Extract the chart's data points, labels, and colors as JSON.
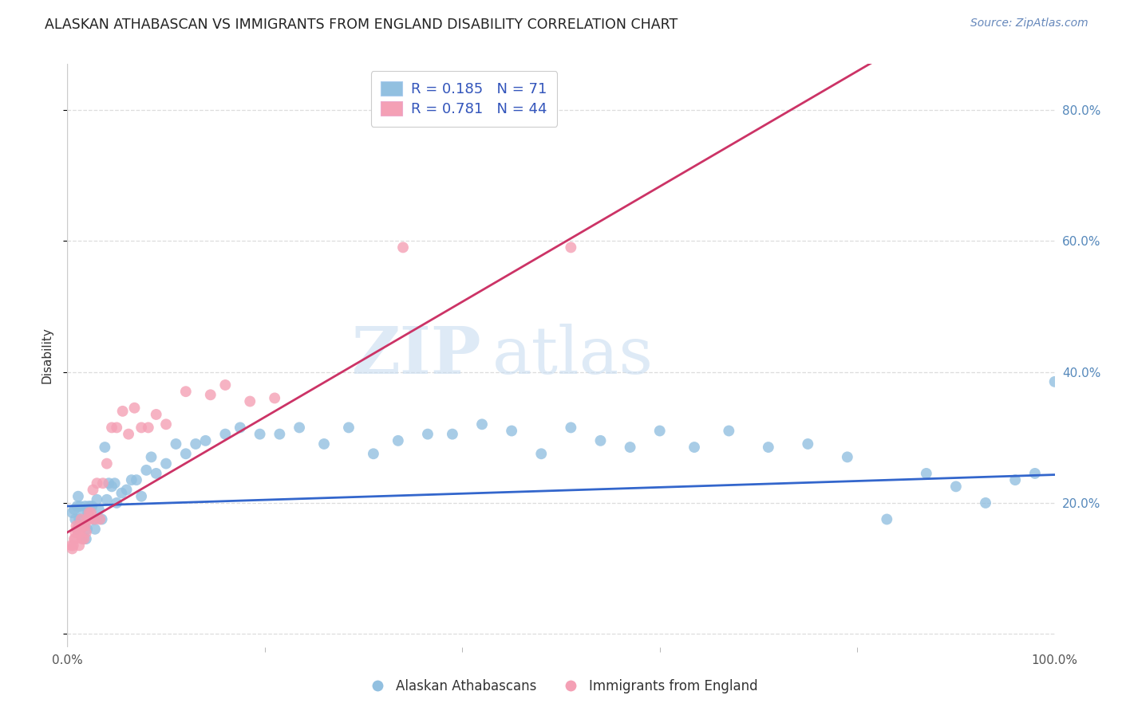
{
  "title": "ALASKAN ATHABASCAN VS IMMIGRANTS FROM ENGLAND DISABILITY CORRELATION CHART",
  "source": "Source: ZipAtlas.com",
  "ylabel": "Disability",
  "xlim": [
    0.0,
    1.0
  ],
  "ylim": [
    -0.02,
    0.87
  ],
  "ytick_vals": [
    0.0,
    0.2,
    0.4,
    0.6,
    0.8
  ],
  "ytick_labels": [
    "",
    "20.0%",
    "40.0%",
    "60.0%",
    "80.0%"
  ],
  "xtick_vals": [
    0.0,
    1.0
  ],
  "xtick_labels": [
    "0.0%",
    "100.0%"
  ],
  "blue_color": "#92C0E0",
  "pink_color": "#F4A0B5",
  "blue_line_color": "#3366CC",
  "pink_line_color": "#CC3366",
  "legend_text_color": "#3355BB",
  "watermark_zip": "ZIP",
  "watermark_atlas": "atlas",
  "R_blue": 0.185,
  "N_blue": 71,
  "R_pink": 0.781,
  "N_pink": 44,
  "blue_intercept": 0.195,
  "blue_slope": 0.048,
  "pink_intercept": 0.155,
  "pink_slope": 0.88,
  "blue_x": [
    0.005,
    0.007,
    0.008,
    0.01,
    0.01,
    0.011,
    0.012,
    0.013,
    0.015,
    0.016,
    0.017,
    0.018,
    0.019,
    0.02,
    0.021,
    0.022,
    0.025,
    0.027,
    0.028,
    0.03,
    0.032,
    0.035,
    0.038,
    0.04,
    0.042,
    0.045,
    0.048,
    0.05,
    0.055,
    0.06,
    0.065,
    0.07,
    0.075,
    0.08,
    0.085,
    0.09,
    0.1,
    0.11,
    0.12,
    0.13,
    0.14,
    0.16,
    0.175,
    0.195,
    0.215,
    0.235,
    0.26,
    0.285,
    0.31,
    0.335,
    0.365,
    0.39,
    0.42,
    0.45,
    0.48,
    0.51,
    0.54,
    0.57,
    0.6,
    0.635,
    0.67,
    0.71,
    0.75,
    0.79,
    0.83,
    0.87,
    0.9,
    0.93,
    0.96,
    0.98,
    1.0
  ],
  "blue_y": [
    0.185,
    0.19,
    0.175,
    0.16,
    0.195,
    0.21,
    0.175,
    0.195,
    0.165,
    0.185,
    0.165,
    0.195,
    0.145,
    0.16,
    0.185,
    0.195,
    0.195,
    0.175,
    0.16,
    0.205,
    0.19,
    0.175,
    0.285,
    0.205,
    0.23,
    0.225,
    0.23,
    0.2,
    0.215,
    0.22,
    0.235,
    0.235,
    0.21,
    0.25,
    0.27,
    0.245,
    0.26,
    0.29,
    0.275,
    0.29,
    0.295,
    0.305,
    0.315,
    0.305,
    0.305,
    0.315,
    0.29,
    0.315,
    0.275,
    0.295,
    0.305,
    0.305,
    0.32,
    0.31,
    0.275,
    0.315,
    0.295,
    0.285,
    0.31,
    0.285,
    0.31,
    0.285,
    0.29,
    0.27,
    0.175,
    0.245,
    0.225,
    0.2,
    0.235,
    0.245,
    0.385
  ],
  "pink_x": [
    0.004,
    0.005,
    0.006,
    0.007,
    0.008,
    0.008,
    0.009,
    0.01,
    0.011,
    0.012,
    0.013,
    0.013,
    0.014,
    0.015,
    0.016,
    0.017,
    0.018,
    0.019,
    0.02,
    0.022,
    0.023,
    0.024,
    0.026,
    0.028,
    0.03,
    0.033,
    0.036,
    0.04,
    0.045,
    0.05,
    0.056,
    0.062,
    0.068,
    0.075,
    0.082,
    0.09,
    0.1,
    0.12,
    0.145,
    0.16,
    0.185,
    0.21,
    0.34,
    0.51
  ],
  "pink_y": [
    0.135,
    0.13,
    0.135,
    0.145,
    0.145,
    0.155,
    0.165,
    0.16,
    0.155,
    0.135,
    0.165,
    0.155,
    0.175,
    0.145,
    0.165,
    0.145,
    0.165,
    0.155,
    0.175,
    0.185,
    0.175,
    0.185,
    0.22,
    0.175,
    0.23,
    0.175,
    0.23,
    0.26,
    0.315,
    0.315,
    0.34,
    0.305,
    0.345,
    0.315,
    0.315,
    0.335,
    0.32,
    0.37,
    0.365,
    0.38,
    0.355,
    0.36,
    0.59,
    0.59
  ],
  "legend_blue_label": "Alaskan Athabascans",
  "legend_pink_label": "Immigrants from England",
  "grid_color": "#DDDDDD",
  "background_color": "#FFFFFF"
}
